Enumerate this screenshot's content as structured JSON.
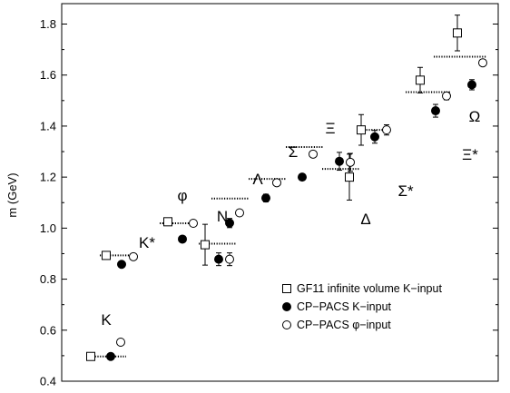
{
  "chart_data": {
    "type": "scatter",
    "title": "",
    "xlabel": "",
    "ylabel": "m (GeV)",
    "ylim": [
      0.4,
      1.88
    ],
    "yticks": [
      "0.4",
      "0.6",
      "0.8",
      "1.0",
      "1.2",
      "1.4",
      "1.6",
      "1.8"
    ],
    "ytick_values": [
      0.4,
      0.6,
      0.8,
      1.0,
      1.2,
      1.4,
      1.6,
      1.8
    ],
    "grid": false,
    "legend_position": "bottom-right",
    "hadrons": [
      {
        "label": "K",
        "experiment": 0.497
      },
      {
        "label": "K*",
        "experiment": 0.893
      },
      {
        "label": "φ",
        "experiment": 1.019
      },
      {
        "label": "N",
        "experiment": 0.939
      },
      {
        "label": "Λ",
        "experiment": 1.116
      },
      {
        "label": "Σ",
        "experiment": 1.193
      },
      {
        "label": "Ξ",
        "experiment": 1.318
      },
      {
        "label": "Δ",
        "experiment": 1.232
      },
      {
        "label": "Σ*",
        "experiment": 1.385
      },
      {
        "label": "Ξ*",
        "experiment": 1.533
      },
      {
        "label": "Ω",
        "experiment": 1.672
      }
    ],
    "series": [
      {
        "name": "GF11 infinite volume K−input",
        "marker": "open-square",
        "points": [
          {
            "hadron": "K",
            "y": 0.497,
            "err": 0.0
          },
          {
            "hadron": "K*",
            "y": 0.893,
            "err": 0.006
          },
          {
            "hadron": "φ",
            "y": 1.025,
            "err": 0.015
          },
          {
            "hadron": "N",
            "y": 0.935,
            "err": 0.08
          },
          {
            "hadron": "Δ",
            "y": 1.2,
            "err": 0.09
          },
          {
            "hadron": "Σ*",
            "y": 1.385,
            "err": 0.06
          },
          {
            "hadron": "Ξ*",
            "y": 1.58,
            "err": 0.05
          },
          {
            "hadron": "Ω",
            "y": 1.765,
            "err": 0.07
          }
        ]
      },
      {
        "name": "CP−PACS K−input",
        "marker": "filled-circle",
        "points": [
          {
            "hadron": "K",
            "y": 0.497,
            "err": 0.0
          },
          {
            "hadron": "K*",
            "y": 0.858,
            "err": 0.004
          },
          {
            "hadron": "φ",
            "y": 0.957,
            "err": 0.004
          },
          {
            "hadron": "N",
            "y": 0.878,
            "err": 0.025
          },
          {
            "hadron": "Λ",
            "y": 1.02,
            "err": 0.018
          },
          {
            "hadron": "Σ",
            "y": 1.118,
            "err": 0.015
          },
          {
            "hadron": "Ξ",
            "y": 1.2,
            "err": 0.012
          },
          {
            "hadron": "Δ",
            "y": 1.262,
            "err": 0.035
          },
          {
            "hadron": "Σ*",
            "y": 1.358,
            "err": 0.025
          },
          {
            "hadron": "Ξ*",
            "y": 1.46,
            "err": 0.025
          },
          {
            "hadron": "Ω",
            "y": 1.562,
            "err": 0.02
          }
        ]
      },
      {
        "name": "CP−PACS φ−input",
        "marker": "open-circle",
        "points": [
          {
            "hadron": "K",
            "y": 0.553,
            "err": 0.0
          },
          {
            "hadron": "K*",
            "y": 0.888,
            "err": 0.004
          },
          {
            "hadron": "φ",
            "y": 1.019,
            "err": 0.0
          },
          {
            "hadron": "N",
            "y": 0.878,
            "err": 0.025
          },
          {
            "hadron": "Λ",
            "y": 1.06,
            "err": 0.01
          },
          {
            "hadron": "Σ",
            "y": 1.178,
            "err": 0.01
          },
          {
            "hadron": "Ξ",
            "y": 1.29,
            "err": 0.008
          },
          {
            "hadron": "Δ",
            "y": 1.258,
            "err": 0.035
          },
          {
            "hadron": "Σ*",
            "y": 1.385,
            "err": 0.02
          },
          {
            "hadron": "Ξ*",
            "y": 1.518,
            "err": 0.015
          },
          {
            "hadron": "Ω",
            "y": 1.648,
            "err": 0.01
          }
        ]
      }
    ]
  }
}
